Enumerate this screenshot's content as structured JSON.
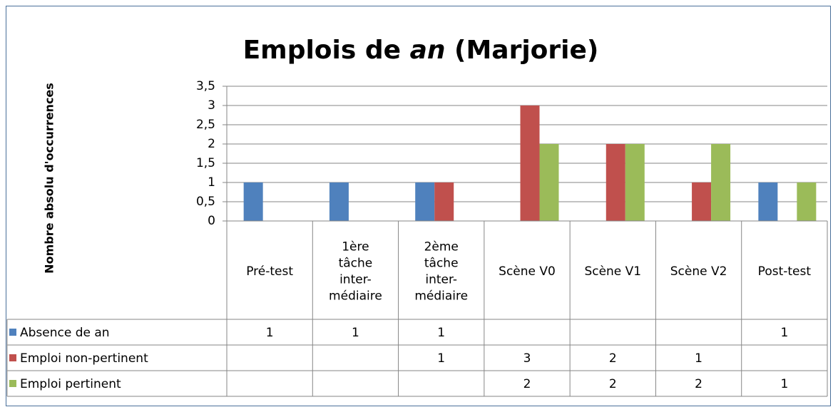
{
  "chart_data": {
    "type": "bar",
    "title_parts": [
      {
        "text": "Emplois de "
      },
      {
        "text": "an",
        "italic": true
      },
      {
        "text": " (Marjorie)"
      }
    ],
    "y_label": "Nombre absolu d'occurrences",
    "categories": [
      "Pré-test",
      "1ère\ntâche\ninter-\nmédiaire",
      "2ème\ntâche\ninter-\nmédiaire",
      "Scène V0",
      "Scène V1",
      "Scène V2",
      "Post-test"
    ],
    "series": [
      {
        "name": "Absence de an",
        "color": "#4f81bd",
        "values": [
          1,
          1,
          1,
          null,
          null,
          null,
          1
        ]
      },
      {
        "name": "Emploi non-pertinent",
        "color": "#c0504d",
        "values": [
          null,
          null,
          1,
          3,
          2,
          1,
          null
        ]
      },
      {
        "name": "Emploi pertinent",
        "color": "#9bbb59",
        "values": [
          null,
          null,
          null,
          2,
          2,
          2,
          1
        ]
      }
    ],
    "ylim": [
      0,
      3.5
    ],
    "yticks": [
      0,
      {
        "value": 0.5,
        "label": "0,5"
      },
      1,
      {
        "value": 1.5,
        "label": "1,5"
      },
      2,
      {
        "value": 2.5,
        "label": "2,5"
      },
      3,
      {
        "value": 3.5,
        "label": "3,5"
      }
    ],
    "grid": true,
    "data_table": true
  }
}
